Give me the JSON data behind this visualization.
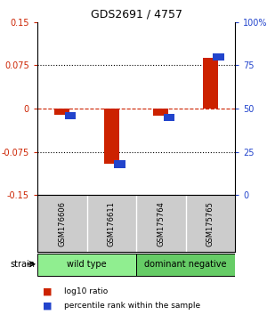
{
  "title": "GDS2691 / 4757",
  "samples": [
    "GSM176606",
    "GSM176611",
    "GSM175764",
    "GSM175765"
  ],
  "log10_ratio": [
    -0.01,
    -0.095,
    -0.012,
    0.088
  ],
  "percentile_rank": [
    46,
    18,
    45,
    80
  ],
  "groups": [
    {
      "label": "wild type",
      "samples": [
        0,
        1
      ],
      "color": "#90ee90"
    },
    {
      "label": "dominant negative",
      "samples": [
        2,
        3
      ],
      "color": "#66cc66"
    }
  ],
  "ylim_left": [
    -0.15,
    0.15
  ],
  "ylim_right": [
    0,
    100
  ],
  "yticks_left": [
    -0.15,
    -0.075,
    0,
    0.075,
    0.15
  ],
  "yticks_right": [
    0,
    25,
    50,
    75,
    100
  ],
  "ytick_labels_left": [
    "-0.15",
    "-0.075",
    "0",
    "0.075",
    "0.15"
  ],
  "ytick_labels_right": [
    "0",
    "25",
    "50",
    "75",
    "100%"
  ],
  "hlines_dotted": [
    0.075,
    -0.075
  ],
  "hline_dashed": 0,
  "red_color": "#cc2200",
  "blue_color": "#2244cc",
  "bg_color": "#ffffff",
  "sample_bg": "#cccccc",
  "strain_label": "strain",
  "legend_items": [
    {
      "label": "log10 ratio",
      "color": "#cc2200"
    },
    {
      "label": "percentile rank within the sample",
      "color": "#2244cc"
    }
  ]
}
